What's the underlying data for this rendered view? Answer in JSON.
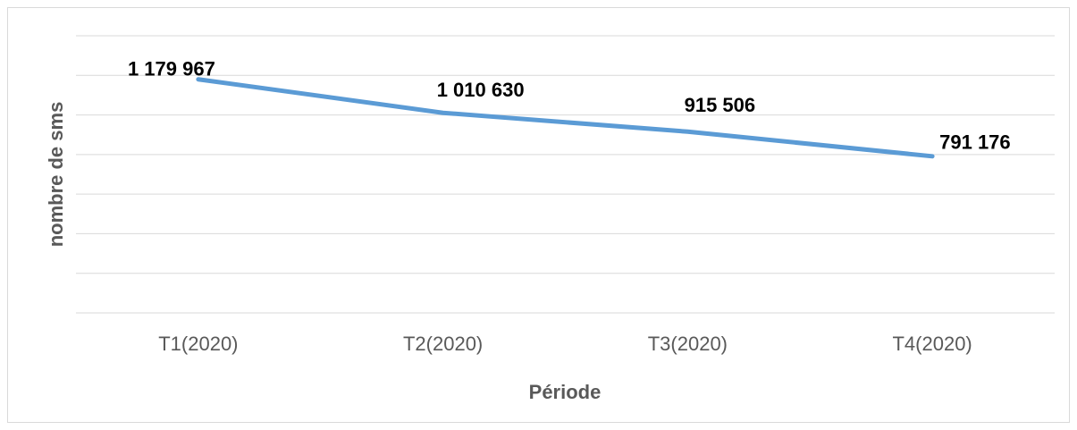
{
  "chart_data": {
    "type": "line",
    "categories": [
      "T1(2020)",
      "T2(2020)",
      "T3(2020)",
      "T4(2020)"
    ],
    "values": [
      1179967,
      1010630,
      915506,
      791176
    ],
    "value_labels": [
      "1 179 967",
      "1 010 630",
      "915 506",
      "791 176"
    ],
    "color": "#5b9bd5",
    "xlabel": "Période",
    "ylabel": "nombre de sms",
    "ylim": [
      0,
      1400000
    ],
    "yticks": [
      0,
      200000,
      400000,
      600000,
      800000,
      1000000,
      1200000,
      1400000
    ],
    "grid": true
  }
}
